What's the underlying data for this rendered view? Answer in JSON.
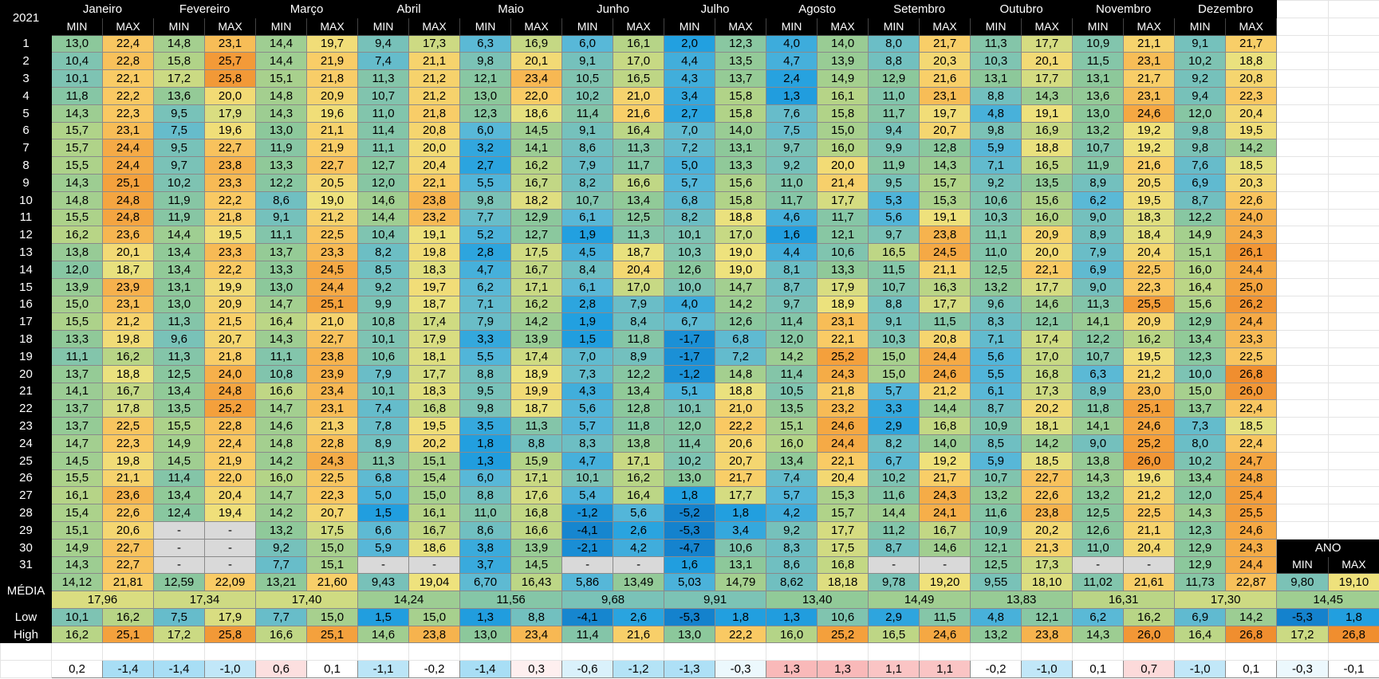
{
  "table": {
    "year": "2021",
    "months": [
      "Janeiro",
      "Fevereiro",
      "Março",
      "Abril",
      "Maio",
      "Junho",
      "Julho",
      "Agosto",
      "Setembro",
      "Outubro",
      "Novembro",
      "Dezembro"
    ],
    "min_label": "MIN",
    "max_label": "MAX",
    "rows": [
      {
        "day": "1",
        "values": [
          "13,0",
          "22,4",
          "14,8",
          "23,1",
          "14,4",
          "19,7",
          "9,4",
          "17,3",
          "6,3",
          "16,9",
          "6,0",
          "16,1",
          "2,0",
          "12,3",
          "4,0",
          "14,0",
          "8,0",
          "21,7",
          "11,3",
          "17,7",
          "10,9",
          "21,1",
          "9,1",
          "21,7"
        ]
      },
      {
        "day": "2",
        "values": [
          "10,4",
          "22,8",
          "15,8",
          "25,7",
          "14,4",
          "21,9",
          "7,4",
          "21,1",
          "9,8",
          "20,1",
          "9,1",
          "17,0",
          "4,4",
          "13,5",
          "4,7",
          "13,9",
          "8,8",
          "20,3",
          "10,3",
          "20,1",
          "11,5",
          "23,1",
          "10,2",
          "18,8"
        ]
      },
      {
        "day": "3",
        "values": [
          "10,1",
          "22,1",
          "17,2",
          "25,8",
          "15,1",
          "21,8",
          "11,3",
          "21,2",
          "12,1",
          "23,4",
          "10,5",
          "16,5",
          "4,3",
          "13,7",
          "2,4",
          "14,9",
          "12,9",
          "21,6",
          "13,1",
          "17,7",
          "13,1",
          "21,7",
          "9,2",
          "20,8"
        ]
      },
      {
        "day": "4",
        "values": [
          "11,8",
          "22,2",
          "13,6",
          "20,0",
          "14,8",
          "20,9",
          "10,7",
          "21,2",
          "13,0",
          "22,0",
          "10,2",
          "21,0",
          "3,4",
          "15,8",
          "1,3",
          "16,1",
          "11,0",
          "23,1",
          "8,8",
          "14,3",
          "13,6",
          "23,1",
          "9,4",
          "22,3"
        ]
      },
      {
        "day": "5",
        "values": [
          "14,3",
          "22,3",
          "9,5",
          "17,9",
          "14,3",
          "19,6",
          "11,0",
          "21,8",
          "12,3",
          "18,6",
          "11,4",
          "21,6",
          "2,7",
          "15,8",
          "7,6",
          "15,8",
          "11,7",
          "19,7",
          "4,8",
          "19,1",
          "13,0",
          "24,6",
          "12,0",
          "20,4"
        ]
      },
      {
        "day": "6",
        "values": [
          "15,7",
          "23,1",
          "7,5",
          "19,6",
          "13,0",
          "21,1",
          "11,4",
          "20,8",
          "6,0",
          "14,5",
          "9,1",
          "16,4",
          "7,0",
          "14,0",
          "7,5",
          "15,0",
          "9,4",
          "20,7",
          "9,8",
          "16,9",
          "13,2",
          "19,2",
          "9,8",
          "19,5"
        ]
      },
      {
        "day": "7",
        "values": [
          "15,7",
          "24,4",
          "9,5",
          "22,7",
          "11,9",
          "21,9",
          "11,1",
          "20,0",
          "3,2",
          "14,1",
          "8,6",
          "11,3",
          "7,2",
          "13,1",
          "9,7",
          "16,0",
          "9,9",
          "12,8",
          "5,9",
          "18,8",
          "10,7",
          "19,2",
          "9,8",
          "14,2"
        ]
      },
      {
        "day": "8",
        "values": [
          "15,5",
          "24,4",
          "9,7",
          "23,8",
          "13,3",
          "22,7",
          "12,7",
          "20,4",
          "2,7",
          "16,2",
          "7,9",
          "11,7",
          "5,0",
          "13,3",
          "9,2",
          "20,0",
          "11,9",
          "14,3",
          "7,1",
          "16,5",
          "11,9",
          "21,6",
          "7,6",
          "18,5"
        ]
      },
      {
        "day": "9",
        "values": [
          "14,3",
          "25,1",
          "10,2",
          "23,3",
          "12,2",
          "20,5",
          "12,0",
          "22,1",
          "5,5",
          "16,7",
          "8,2",
          "16,6",
          "5,7",
          "15,6",
          "11,0",
          "21,4",
          "9,5",
          "15,7",
          "9,2",
          "13,5",
          "8,9",
          "20,5",
          "6,9",
          "20,3"
        ]
      },
      {
        "day": "10",
        "values": [
          "14,8",
          "24,8",
          "11,9",
          "22,2",
          "8,6",
          "19,0",
          "14,6",
          "23,8",
          "9,8",
          "18,2",
          "10,7",
          "13,4",
          "6,8",
          "15,8",
          "11,7",
          "17,7",
          "5,3",
          "15,3",
          "10,6",
          "15,6",
          "6,2",
          "19,5",
          "8,7",
          "22,6"
        ]
      },
      {
        "day": "11",
        "values": [
          "15,5",
          "24,8",
          "11,9",
          "21,8",
          "9,1",
          "21,2",
          "14,4",
          "23,2",
          "7,7",
          "12,9",
          "6,1",
          "12,5",
          "8,2",
          "18,8",
          "4,6",
          "11,7",
          "5,6",
          "19,1",
          "10,3",
          "16,0",
          "9,0",
          "18,3",
          "12,2",
          "24,0"
        ]
      },
      {
        "day": "12",
        "values": [
          "16,2",
          "23,6",
          "14,4",
          "19,5",
          "11,1",
          "22,5",
          "10,4",
          "19,1",
          "5,2",
          "12,7",
          "1,9",
          "11,3",
          "10,1",
          "17,0",
          "1,6",
          "12,1",
          "9,7",
          "23,8",
          "11,1",
          "20,9",
          "8,9",
          "18,4",
          "14,9",
          "24,3"
        ]
      },
      {
        "day": "13",
        "values": [
          "13,8",
          "20,1",
          "13,4",
          "23,3",
          "13,7",
          "23,3",
          "8,2",
          "19,8",
          "2,8",
          "17,5",
          "4,5",
          "18,7",
          "10,3",
          "19,0",
          "4,4",
          "10,6",
          "16,5",
          "24,5",
          "11,0",
          "20,0",
          "7,9",
          "20,4",
          "15,1",
          "26,1"
        ]
      },
      {
        "day": "14",
        "values": [
          "12,0",
          "18,7",
          "13,4",
          "22,2",
          "13,3",
          "24,5",
          "8,5",
          "18,3",
          "4,7",
          "16,7",
          "8,4",
          "20,4",
          "12,6",
          "19,0",
          "8,1",
          "13,3",
          "11,5",
          "21,1",
          "12,5",
          "22,1",
          "6,9",
          "22,5",
          "16,0",
          "24,4"
        ]
      },
      {
        "day": "15",
        "values": [
          "13,9",
          "23,9",
          "13,1",
          "19,9",
          "13,0",
          "24,4",
          "9,2",
          "19,7",
          "6,2",
          "17,1",
          "6,1",
          "17,0",
          "10,0",
          "14,7",
          "8,7",
          "17,9",
          "10,7",
          "16,3",
          "13,2",
          "17,7",
          "9,0",
          "22,3",
          "16,4",
          "25,0"
        ]
      },
      {
        "day": "16",
        "values": [
          "15,0",
          "23,1",
          "13,0",
          "20,9",
          "14,7",
          "25,1",
          "9,9",
          "18,7",
          "7,1",
          "16,2",
          "2,8",
          "7,9",
          "4,0",
          "14,2",
          "9,7",
          "18,9",
          "8,8",
          "17,7",
          "9,6",
          "14,6",
          "11,3",
          "25,5",
          "15,6",
          "26,2"
        ]
      },
      {
        "day": "17",
        "values": [
          "15,5",
          "21,2",
          "11,3",
          "21,5",
          "16,4",
          "21,0",
          "10,8",
          "17,4",
          "7,9",
          "14,2",
          "1,9",
          "8,4",
          "6,7",
          "12,6",
          "11,4",
          "23,1",
          "9,1",
          "11,5",
          "8,3",
          "12,1",
          "14,1",
          "20,9",
          "12,9",
          "24,4"
        ]
      },
      {
        "day": "18",
        "values": [
          "13,3",
          "19,8",
          "9,6",
          "20,7",
          "14,3",
          "22,7",
          "10,1",
          "17,9",
          "3,3",
          "13,9",
          "1,5",
          "11,8",
          "-1,7",
          "6,8",
          "12,0",
          "22,1",
          "10,3",
          "20,8",
          "7,1",
          "17,4",
          "12,2",
          "16,2",
          "13,4",
          "23,3"
        ]
      },
      {
        "day": "19",
        "values": [
          "11,1",
          "16,2",
          "11,3",
          "21,8",
          "11,1",
          "23,8",
          "10,6",
          "18,1",
          "5,5",
          "17,4",
          "7,0",
          "8,9",
          "-1,7",
          "7,2",
          "14,2",
          "25,2",
          "15,0",
          "24,4",
          "5,6",
          "17,0",
          "10,7",
          "19,5",
          "12,3",
          "22,5"
        ]
      },
      {
        "day": "20",
        "values": [
          "13,7",
          "18,8",
          "12,5",
          "24,0",
          "10,8",
          "23,9",
          "7,9",
          "17,7",
          "8,8",
          "18,9",
          "7,3",
          "12,2",
          "-1,2",
          "14,8",
          "11,4",
          "24,3",
          "15,0",
          "24,6",
          "5,5",
          "16,8",
          "6,3",
          "21,2",
          "10,0",
          "26,8"
        ]
      },
      {
        "day": "21",
        "values": [
          "14,1",
          "16,7",
          "13,4",
          "24,8",
          "16,6",
          "23,4",
          "10,1",
          "18,3",
          "9,5",
          "19,9",
          "4,3",
          "13,4",
          "5,1",
          "18,8",
          "10,5",
          "21,8",
          "5,7",
          "21,2",
          "6,1",
          "17,3",
          "8,9",
          "23,0",
          "15,0",
          "26,0"
        ]
      },
      {
        "day": "22",
        "values": [
          "13,7",
          "17,8",
          "13,5",
          "25,2",
          "14,7",
          "23,1",
          "7,4",
          "16,8",
          "9,8",
          "18,7",
          "5,6",
          "12,8",
          "10,1",
          "21,0",
          "13,5",
          "23,2",
          "3,3",
          "14,4",
          "8,7",
          "20,2",
          "11,8",
          "25,1",
          "13,7",
          "22,4"
        ]
      },
      {
        "day": "23",
        "values": [
          "13,7",
          "22,5",
          "15,5",
          "22,8",
          "14,6",
          "21,3",
          "7,8",
          "19,5",
          "3,5",
          "11,3",
          "5,7",
          "11,8",
          "12,0",
          "22,2",
          "15,1",
          "24,6",
          "2,9",
          "16,8",
          "10,9",
          "18,1",
          "14,1",
          "24,6",
          "7,3",
          "18,5"
        ]
      },
      {
        "day": "24",
        "values": [
          "14,7",
          "22,3",
          "14,9",
          "22,4",
          "14,8",
          "22,8",
          "8,9",
          "20,2",
          "1,8",
          "8,8",
          "8,3",
          "13,8",
          "11,4",
          "20,6",
          "16,0",
          "24,4",
          "8,2",
          "14,0",
          "8,5",
          "14,2",
          "9,0",
          "25,2",
          "8,0",
          "22,4"
        ]
      },
      {
        "day": "25",
        "values": [
          "14,5",
          "19,8",
          "14,5",
          "21,9",
          "14,2",
          "24,3",
          "11,3",
          "15,1",
          "1,3",
          "15,9",
          "4,7",
          "17,1",
          "10,2",
          "20,7",
          "13,4",
          "22,1",
          "6,7",
          "19,2",
          "5,9",
          "18,5",
          "13,8",
          "26,0",
          "10,2",
          "24,7"
        ]
      },
      {
        "day": "26",
        "values": [
          "15,5",
          "21,1",
          "11,4",
          "22,0",
          "16,0",
          "22,5",
          "6,8",
          "15,4",
          "6,0",
          "17,1",
          "10,1",
          "16,2",
          "13,0",
          "21,7",
          "7,4",
          "20,4",
          "10,2",
          "21,7",
          "10,7",
          "22,7",
          "14,3",
          "19,6",
          "13,4",
          "24,8"
        ]
      },
      {
        "day": "27",
        "values": [
          "16,1",
          "23,6",
          "13,4",
          "20,4",
          "14,7",
          "22,3",
          "5,0",
          "15,0",
          "8,8",
          "17,6",
          "5,4",
          "16,4",
          "1,8",
          "17,7",
          "5,7",
          "15,3",
          "11,6",
          "24,3",
          "13,2",
          "22,6",
          "13,2",
          "21,2",
          "12,0",
          "25,4"
        ]
      },
      {
        "day": "28",
        "values": [
          "15,4",
          "22,6",
          "12,4",
          "19,4",
          "14,2",
          "20,7",
          "1,5",
          "16,1",
          "11,0",
          "16,8",
          "-1,2",
          "5,6",
          "-5,2",
          "1,8",
          "4,2",
          "15,7",
          "14,4",
          "24,1",
          "11,6",
          "23,8",
          "12,5",
          "22,5",
          "14,3",
          "25,5"
        ]
      },
      {
        "day": "29",
        "values": [
          "15,1",
          "20,6",
          "-",
          "-",
          "13,2",
          "17,5",
          "6,6",
          "16,7",
          "8,6",
          "16,6",
          "-4,1",
          "2,6",
          "-5,3",
          "3,4",
          "9,2",
          "17,7",
          "11,2",
          "16,7",
          "10,9",
          "20,2",
          "12,6",
          "21,1",
          "12,3",
          "24,6"
        ]
      },
      {
        "day": "30",
        "values": [
          "14,9",
          "22,7",
          "-",
          "-",
          "9,2",
          "15,0",
          "5,9",
          "18,6",
          "3,8",
          "13,9",
          "-2,1",
          "4,2",
          "-4,7",
          "10,6",
          "8,3",
          "17,5",
          "8,7",
          "14,6",
          "12,1",
          "21,3",
          "11,0",
          "20,4",
          "12,9",
          "24,3"
        ]
      },
      {
        "day": "31",
        "values": [
          "14,3",
          "22,7",
          "-",
          "-",
          "7,7",
          "15,1",
          "-",
          "-",
          "3,7",
          "14,5",
          "-",
          "-",
          "1,6",
          "13,1",
          "8,6",
          "16,8",
          "-",
          "-",
          "12,5",
          "17,3",
          "-",
          "-",
          "12,9",
          "24,4"
        ]
      }
    ],
    "media_label": "MÉDIA",
    "media": [
      "14,12",
      "21,81",
      "12,59",
      "22,09",
      "13,21",
      "21,60",
      "9,43",
      "19,04",
      "6,70",
      "16,43",
      "5,86",
      "13,49",
      "5,03",
      "14,79",
      "8,62",
      "18,18",
      "9,78",
      "19,20",
      "9,55",
      "18,10",
      "11,02",
      "21,61",
      "11,73",
      "22,87"
    ],
    "media_avg": [
      "17,96",
      "17,34",
      "17,40",
      "14,24",
      "11,56",
      "9,68",
      "9,91",
      "13,40",
      "14,49",
      "13,83",
      "16,31",
      "17,30"
    ],
    "low_label": "Low",
    "low": [
      "10,1",
      "16,2",
      "7,5",
      "17,9",
      "7,7",
      "15,0",
      "1,5",
      "15,0",
      "1,3",
      "8,8",
      "-4,1",
      "2,6",
      "-5,3",
      "1,8",
      "1,3",
      "10,6",
      "2,9",
      "11,5",
      "4,8",
      "12,1",
      "6,2",
      "16,2",
      "6,9",
      "14,2"
    ],
    "high_label": "High",
    "high": [
      "16,2",
      "25,1",
      "17,2",
      "25,8",
      "16,6",
      "25,1",
      "14,6",
      "23,8",
      "13,0",
      "23,4",
      "11,4",
      "21,6",
      "13,0",
      "22,2",
      "16,0",
      "25,2",
      "16,5",
      "24,6",
      "13,2",
      "23,8",
      "14,3",
      "26,0",
      "16,4",
      "26,8"
    ],
    "diff": [
      "0,2",
      "-1,4",
      "-1,4",
      "-1,0",
      "0,6",
      "0,1",
      "-1,1",
      "-0,2",
      "-1,4",
      "0,3",
      "-0,6",
      "-1,2",
      "-1,3",
      "-0,3",
      "1,3",
      "1,3",
      "1,1",
      "1,1",
      "-0,2",
      "-1,0",
      "0,1",
      "0,7",
      "-1,0",
      "0,1"
    ],
    "ano": {
      "label": "ANO",
      "media": [
        "9,80",
        "19,10"
      ],
      "media_avg": "14,45",
      "low": [
        "-5,3",
        "1,8"
      ],
      "high": [
        "17,2",
        "26,8"
      ],
      "diff": [
        "-0,3",
        "-0,1"
      ]
    }
  }
}
